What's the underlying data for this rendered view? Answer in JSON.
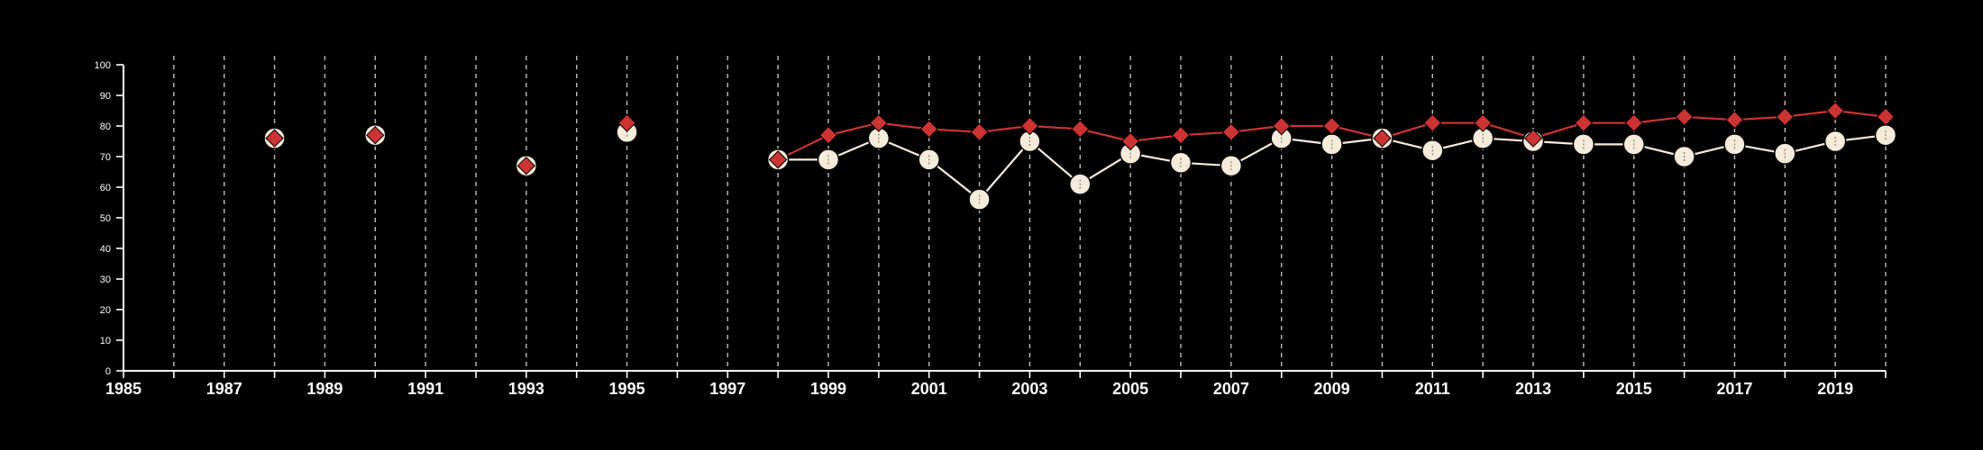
{
  "chart_data": {
    "type": "line",
    "title": "",
    "xlabel": "",
    "ylabel": "",
    "xlim": [
      1985,
      2020
    ],
    "ylim": [
      0,
      100
    ],
    "x_ticks": [
      1985,
      1986,
      1987,
      1988,
      1989,
      1990,
      1991,
      1992,
      1993,
      1994,
      1995,
      1996,
      1997,
      1998,
      1999,
      2000,
      2001,
      2002,
      2003,
      2004,
      2005,
      2006,
      2007,
      2008,
      2009,
      2010,
      2011,
      2012,
      2013,
      2014,
      2015,
      2016,
      2017,
      2018,
      2019,
      2020
    ],
    "x_tick_labels": [
      "1985",
      "1987",
      "1989",
      "1991",
      "1993",
      "1995",
      "1997",
      "1999",
      "2001",
      "2003",
      "2005",
      "2007",
      "2009",
      "2011",
      "2013",
      "2015",
      "2017",
      "2019"
    ],
    "y_ticks": [
      0,
      10,
      20,
      30,
      40,
      50,
      60,
      70,
      80,
      90,
      100
    ],
    "y_tick_labels": [
      "0",
      "10",
      "20",
      "30",
      "40",
      "50",
      "60",
      "70",
      "80",
      "90",
      "100"
    ],
    "grid": "vertical dashed lines at each year",
    "legend": "none",
    "series": [
      {
        "marker": "circle",
        "color": "#f7ebdc",
        "points": [
          [
            1988,
            76
          ],
          [
            1990,
            77
          ],
          [
            1993,
            67
          ],
          [
            1995,
            78
          ],
          [
            1998,
            69
          ],
          [
            1999,
            69
          ],
          [
            2000,
            76
          ],
          [
            2001,
            69
          ],
          [
            2002,
            56
          ],
          [
            2003,
            75
          ],
          [
            2004,
            61
          ],
          [
            2005,
            71
          ],
          [
            2006,
            68
          ],
          [
            2007,
            67
          ],
          [
            2008,
            76
          ],
          [
            2009,
            74
          ],
          [
            2010,
            76
          ],
          [
            2011,
            72
          ],
          [
            2012,
            76
          ],
          [
            2013,
            75
          ],
          [
            2014,
            74
          ],
          [
            2015,
            74
          ],
          [
            2016,
            70
          ],
          [
            2017,
            74
          ],
          [
            2018,
            71
          ],
          [
            2019,
            75
          ],
          [
            2020,
            77
          ]
        ],
        "connected_from": 1998
      },
      {
        "marker": "diamond",
        "color": "#cc3333",
        "points": [
          [
            1988,
            76
          ],
          [
            1990,
            77
          ],
          [
            1993,
            67
          ],
          [
            1995,
            81
          ],
          [
            1998,
            69
          ],
          [
            1999,
            77
          ],
          [
            2000,
            81
          ],
          [
            2001,
            79
          ],
          [
            2002,
            78
          ],
          [
            2003,
            80
          ],
          [
            2004,
            79
          ],
          [
            2005,
            75
          ],
          [
            2006,
            77
          ],
          [
            2007,
            78
          ],
          [
            2008,
            80
          ],
          [
            2009,
            80
          ],
          [
            2010,
            76
          ],
          [
            2011,
            81
          ],
          [
            2012,
            81
          ],
          [
            2013,
            76
          ],
          [
            2014,
            81
          ],
          [
            2015,
            81
          ],
          [
            2016,
            83
          ],
          [
            2017,
            82
          ],
          [
            2018,
            83
          ],
          [
            2019,
            85
          ],
          [
            2020,
            83
          ]
        ],
        "connected_from": 1998
      }
    ]
  },
  "colors": {
    "background": "#000000",
    "axis": "#ffffff",
    "grid": "#bbbbbb",
    "series_circle": "#f7ebdc",
    "series_diamond": "#cc3333"
  }
}
